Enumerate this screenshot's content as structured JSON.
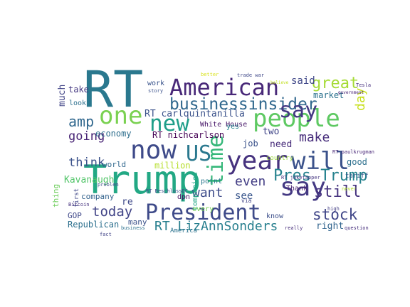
{
  "words": [
    {
      "text": "RT",
      "color": "#2a788e"
    },
    {
      "text": "Trump",
      "color": "#22a884"
    },
    {
      "text": "American",
      "color": "#482878"
    },
    {
      "text": "businessinsider",
      "color": "#31688e"
    },
    {
      "text": "one",
      "color": "#7ad151"
    },
    {
      "text": "new",
      "color": "#1f9e89"
    },
    {
      "text": "people",
      "color": "#5ec962"
    },
    {
      "text": "say",
      "color": "#443983"
    },
    {
      "text": "now",
      "color": "#3e4a89"
    },
    {
      "text": "US",
      "color": "#2a788e"
    },
    {
      "text": "time",
      "color": "#35b779"
    },
    {
      "text": "year",
      "color": "#46327e"
    },
    {
      "text": "will",
      "color": "#3b528b"
    },
    {
      "text": "say",
      "color": "#443983"
    },
    {
      "text": "President",
      "color": "#3e4a89"
    },
    {
      "text": "RT LizAnnSonders",
      "color": "#277f8e"
    },
    {
      "text": "Pres Trump",
      "color": "#26828e"
    },
    {
      "text": "day",
      "color": "#c8e020"
    },
    {
      "text": "great",
      "color": "#a5db36"
    },
    {
      "text": "amp",
      "color": "#31688e"
    },
    {
      "text": "going",
      "color": "#482475"
    },
    {
      "text": "think",
      "color": "#3b528b"
    },
    {
      "text": "today",
      "color": "#414487"
    },
    {
      "text": "still",
      "color": "#46337f"
    },
    {
      "text": "stock",
      "color": "#404688"
    },
    {
      "text": "make",
      "color": "#472d7b"
    },
    {
      "text": "said",
      "color": "#3f4788"
    },
    {
      "text": "market",
      "color": "#2c728e"
    },
    {
      "text": "good",
      "color": "#2d708e"
    },
    {
      "text": "even",
      "color": "#433e85"
    },
    {
      "text": "want",
      "color": "#3e4c8a"
    },
    {
      "text": "see",
      "color": "#39568c"
    },
    {
      "text": "economy",
      "color": "#2e6f8e"
    },
    {
      "text": "Kavanaugh",
      "color": "#52c569"
    },
    {
      "text": "RT carlquintanilla",
      "color": "#3b528b"
    },
    {
      "text": "RT nichcarlson",
      "color": "#440154"
    },
    {
      "text": "White House",
      "color": "#481769"
    },
    {
      "text": "million",
      "color": "#b5de2b"
    },
    {
      "text": "world",
      "color": "#31688e"
    },
    {
      "text": "company",
      "color": "#33638d"
    },
    {
      "text": "GOP",
      "color": "#3f4889"
    },
    {
      "text": "Republican",
      "color": "#2d708e"
    },
    {
      "text": "many",
      "color": "#3b528b"
    },
    {
      "text": "much",
      "color": "#414487"
    },
    {
      "text": "thing",
      "color": "#6ccd5a"
    },
    {
      "text": "take",
      "color": "#453882"
    },
    {
      "text": "look",
      "color": "#2d708e"
    },
    {
      "text": "two",
      "color": "#404588"
    },
    {
      "text": "need",
      "color": "#472c7a"
    },
    {
      "text": "job",
      "color": "#3b528b"
    },
    {
      "text": "yes",
      "color": "#25848e"
    },
    {
      "text": "know",
      "color": "#3c4f8a"
    },
    {
      "text": "right",
      "color": "#32658e"
    },
    {
      "text": "Thank",
      "color": "#481f70"
    },
    {
      "text": "country",
      "color": "#9bd93c"
    },
    {
      "text": "America",
      "color": "#2c738e"
    },
    {
      "text": "re",
      "color": "#3e4989"
    },
    {
      "text": "point",
      "color": "#2a778e"
    },
    {
      "text": "every",
      "color": "#75d054"
    },
    {
      "text": "companies",
      "color": "#22a785"
    },
    {
      "text": "dpn",
      "color": "#471063"
    },
    {
      "text": "work",
      "color": "#3a548c"
    },
    {
      "text": "trade war",
      "color": "#3f4889"
    },
    {
      "text": "tariff",
      "color": "#38598c"
    },
    {
      "text": "Tesla",
      "color": "#46307e"
    },
    {
      "text": "RT paulkrugman",
      "color": "#482677"
    },
    {
      "text": "RT BeschlossDC",
      "color": "#3d4d8a"
    },
    {
      "text": "RT jaketapper",
      "color": "#453581"
    },
    {
      "text": "fact",
      "color": "#414487"
    },
    {
      "text": "business",
      "color": "#2d718e"
    },
    {
      "text": "question",
      "color": "#472f7d"
    },
    {
      "text": "first",
      "color": "#3f4788"
    },
    {
      "text": "via",
      "color": "#404387"
    },
    {
      "text": "Bitcoin",
      "color": "#46327e"
    },
    {
      "text": "story",
      "color": "#3b518b"
    },
    {
      "text": "better",
      "color": "#d8e219"
    },
    {
      "text": "government",
      "color": "#482374"
    },
    {
      "text": "high",
      "color": "#433d84"
    },
    {
      "text": "really",
      "color": "#472e7c"
    },
    {
      "text": "never",
      "color": "#b0dd2f"
    },
    {
      "text": "believe",
      "color": "#c2df23"
    },
    {
      "text": "problem",
      "color": "#3c4f8a"
    }
  ]
}
